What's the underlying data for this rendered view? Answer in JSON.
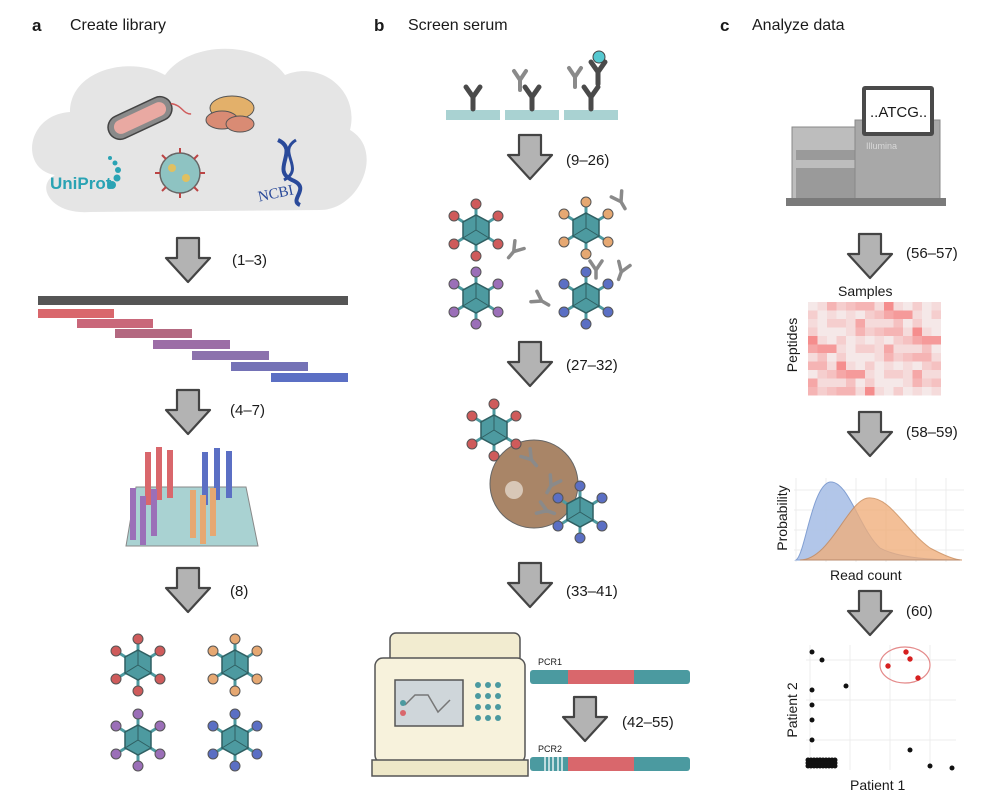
{
  "panels": [
    {
      "letter": "a",
      "title": "Create library"
    },
    {
      "letter": "b",
      "title": "Screen serum"
    },
    {
      "letter": "c",
      "title": "Analyze data"
    }
  ],
  "sources": {
    "uniprot": "UniProt",
    "ncbi": "NCBI"
  },
  "refs": {
    "a1": "(1–3)",
    "a2": "(4–7)",
    "a3": "(8)",
    "b1": "(9–26)",
    "b2": "(27–32)",
    "b3": "(33–41)",
    "b4": "(42–55)",
    "c1": "(56–57)",
    "c2": "(58–59)",
    "c3": "(60)"
  },
  "sequencer": {
    "screen_text": "..ATCG..",
    "brand": "Illumina"
  },
  "pcr": {
    "label1": "PCR1",
    "label2": "PCR2"
  },
  "heatmap": {
    "xlabel": "Samples",
    "ylabel": "Peptides"
  },
  "density": {
    "xlabel": "Read count",
    "ylabel": "Probability"
  },
  "scatter": {
    "xlabel": "Patient 1",
    "ylabel": "Patient 2"
  },
  "colors": {
    "arrow_fill": "#b3b3b3",
    "phage_body": "#4d9aa0",
    "red": "#cf5b5b",
    "orange": "#e6a872",
    "purple": "#9b6fb8",
    "blue": "#5b6fc4",
    "teal_bar": "#4b9aa0",
    "density_blue": "#aec4e8",
    "density_orange": "#f0ae7a",
    "highlight_red": "#d62020"
  }
}
